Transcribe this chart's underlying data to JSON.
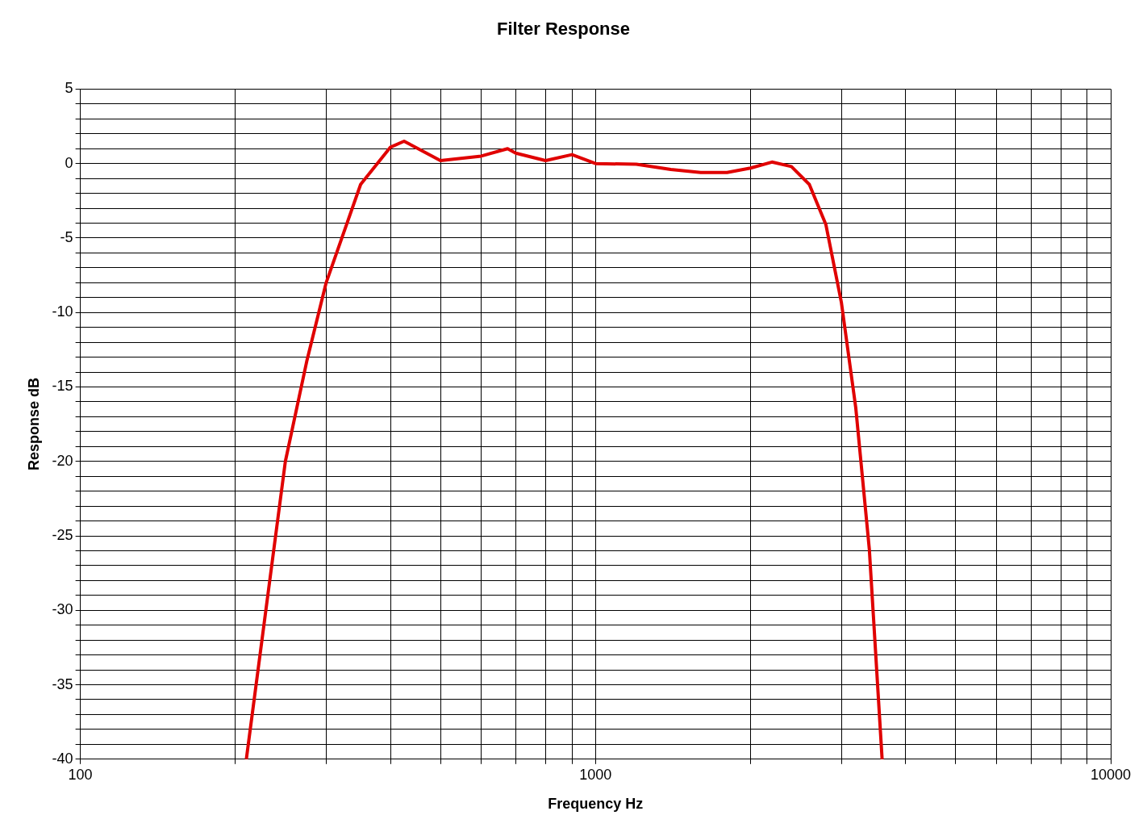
{
  "chart_data": {
    "type": "line",
    "title": "Filter Response",
    "xlabel": "Frequency Hz",
    "ylabel": "Response dB",
    "log": "x",
    "grid": true,
    "legend": false,
    "marker": "none",
    "line_style": "solid",
    "xlim": [
      100,
      10000
    ],
    "xticks": [
      100,
      {
        "value": 200,
        "label": null
      },
      {
        "value": 300,
        "label": null
      },
      {
        "value": 400,
        "label": null
      },
      {
        "value": 500,
        "label": null
      },
      {
        "value": 600,
        "label": null
      },
      {
        "value": 700,
        "label": null
      },
      {
        "value": 800,
        "label": null
      },
      {
        "value": 900,
        "label": null
      },
      1000,
      {
        "value": 2000,
        "label": null
      },
      {
        "value": 3000,
        "label": null
      },
      {
        "value": 4000,
        "label": null
      },
      {
        "value": 5000,
        "label": null
      },
      {
        "value": 6000,
        "label": null
      },
      {
        "value": 7000,
        "label": null
      },
      {
        "value": 8000,
        "label": null
      },
      {
        "value": 9000,
        "label": null
      },
      10000
    ],
    "ylim": [
      -40,
      5
    ],
    "yticks": [
      -40,
      {
        "value": -39,
        "label": null
      },
      {
        "value": -38,
        "label": null
      },
      {
        "value": -37,
        "label": null
      },
      {
        "value": -36,
        "label": null
      },
      -35,
      {
        "value": -34,
        "label": null
      },
      {
        "value": -33,
        "label": null
      },
      {
        "value": -32,
        "label": null
      },
      {
        "value": -31,
        "label": null
      },
      -30,
      {
        "value": -29,
        "label": null
      },
      {
        "value": -28,
        "label": null
      },
      {
        "value": -27,
        "label": null
      },
      {
        "value": -26,
        "label": null
      },
      -25,
      {
        "value": -24,
        "label": null
      },
      {
        "value": -23,
        "label": null
      },
      {
        "value": -22,
        "label": null
      },
      {
        "value": -21,
        "label": null
      },
      -20,
      {
        "value": -19,
        "label": null
      },
      {
        "value": -18,
        "label": null
      },
      {
        "value": -17,
        "label": null
      },
      {
        "value": -16,
        "label": null
      },
      -15,
      {
        "value": -14,
        "label": null
      },
      {
        "value": -13,
        "label": null
      },
      {
        "value": -12,
        "label": null
      },
      {
        "value": -11,
        "label": null
      },
      -10,
      {
        "value": -9,
        "label": null
      },
      {
        "value": -8,
        "label": null
      },
      {
        "value": -7,
        "label": null
      },
      {
        "value": -6,
        "label": null
      },
      -5,
      {
        "value": -4,
        "label": null
      },
      {
        "value": -3,
        "label": null
      },
      {
        "value": -2,
        "label": null
      },
      {
        "value": -1,
        "label": null
      },
      0,
      {
        "value": 1,
        "label": null
      },
      {
        "value": 2,
        "label": null
      },
      {
        "value": 3,
        "label": null
      },
      {
        "value": 4,
        "label": null
      },
      5
    ],
    "x": [
      210,
      250,
      275,
      300,
      350,
      400,
      425,
      500,
      600,
      675,
      700,
      800,
      900,
      1000,
      1200,
      1400,
      1600,
      1800,
      2000,
      2200,
      2400,
      2600,
      2800,
      3000,
      3200,
      3400,
      3600
    ],
    "series": [
      {
        "color": "#e00000",
        "values": [
          -40,
          -20,
          -13.3,
          -8,
          -1.4,
          1.1,
          1.5,
          0.2,
          0.5,
          1.0,
          0.7,
          0.2,
          0.6,
          0,
          -0.05,
          -0.4,
          -0.6,
          -0.6,
          -0.3,
          0.1,
          -0.2,
          -1.4,
          -4.1,
          -9.3,
          -16.4,
          -25.9,
          -40
        ]
      }
    ]
  }
}
